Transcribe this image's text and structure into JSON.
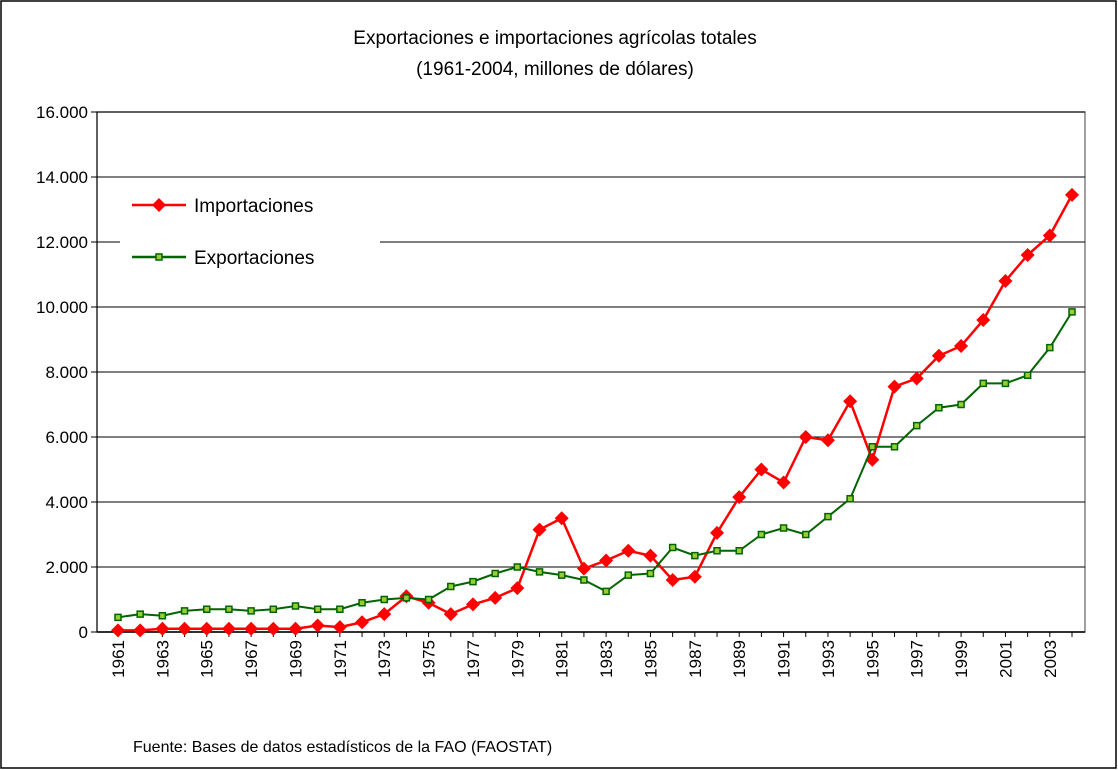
{
  "chart_data": {
    "type": "line",
    "title": "Exportaciones  e importaciones agrícolas totales",
    "subtitle": "(1961-2004, millones de dólares)",
    "source": "Fuente: Bases de datos estadísticos de la FAO (FAOSTAT)",
    "categories": [
      "1961",
      null,
      "1963",
      null,
      "1965",
      null,
      "1967",
      null,
      "1969",
      null,
      "1971",
      null,
      "1973",
      null,
      "1975",
      null,
      "1977",
      null,
      "1979",
      null,
      "1981",
      null,
      "1983",
      null,
      "1985",
      null,
      "1987",
      null,
      "1989",
      null,
      "1991",
      null,
      "1993",
      null,
      "1995",
      null,
      "1997",
      null,
      "1999",
      null,
      "2001",
      null,
      "2003",
      null
    ],
    "series": [
      {
        "name": "Importaciones",
        "color": "#ff0000",
        "marker": "diamond",
        "values": [
          50,
          50,
          100,
          100,
          100,
          100,
          100,
          100,
          100,
          200,
          150,
          300,
          550,
          1100,
          900,
          550,
          850,
          1050,
          1350,
          3150,
          3500,
          1950,
          2200,
          2500,
          2350,
          1600,
          1700,
          3050,
          4150,
          5000,
          4600,
          6000,
          5900,
          7100,
          5300,
          7550,
          7800,
          8500,
          8800,
          9600,
          10800,
          11600,
          12200,
          13450
        ]
      },
      {
        "name": "Exportaciones",
        "color": "#006400",
        "marker": "square",
        "values": [
          450,
          550,
          500,
          650,
          700,
          700,
          650,
          700,
          800,
          700,
          700,
          900,
          1000,
          1050,
          1000,
          1400,
          1550,
          1800,
          2000,
          1850,
          1750,
          1600,
          1250,
          1750,
          1800,
          2600,
          2350,
          2500,
          2500,
          3000,
          3200,
          3000,
          3550,
          4100,
          5700,
          5700,
          6350,
          6900,
          7000,
          7650,
          7650,
          7900,
          8750,
          9850
        ]
      }
    ],
    "ylim": [
      0,
      16000
    ],
    "yticks": [
      0,
      {
        "value": 2000,
        "label": "2.000"
      },
      {
        "value": 4000,
        "label": "4.000"
      },
      {
        "value": 6000,
        "label": "6.000"
      },
      {
        "value": 8000,
        "label": "8.000"
      },
      {
        "value": 10000,
        "label": "10.000"
      },
      {
        "value": 12000,
        "label": "12.000"
      },
      {
        "value": 14000,
        "label": "14.000"
      },
      {
        "value": 16000,
        "label": "16.000"
      }
    ],
    "grid": true,
    "legend": "upper left"
  }
}
